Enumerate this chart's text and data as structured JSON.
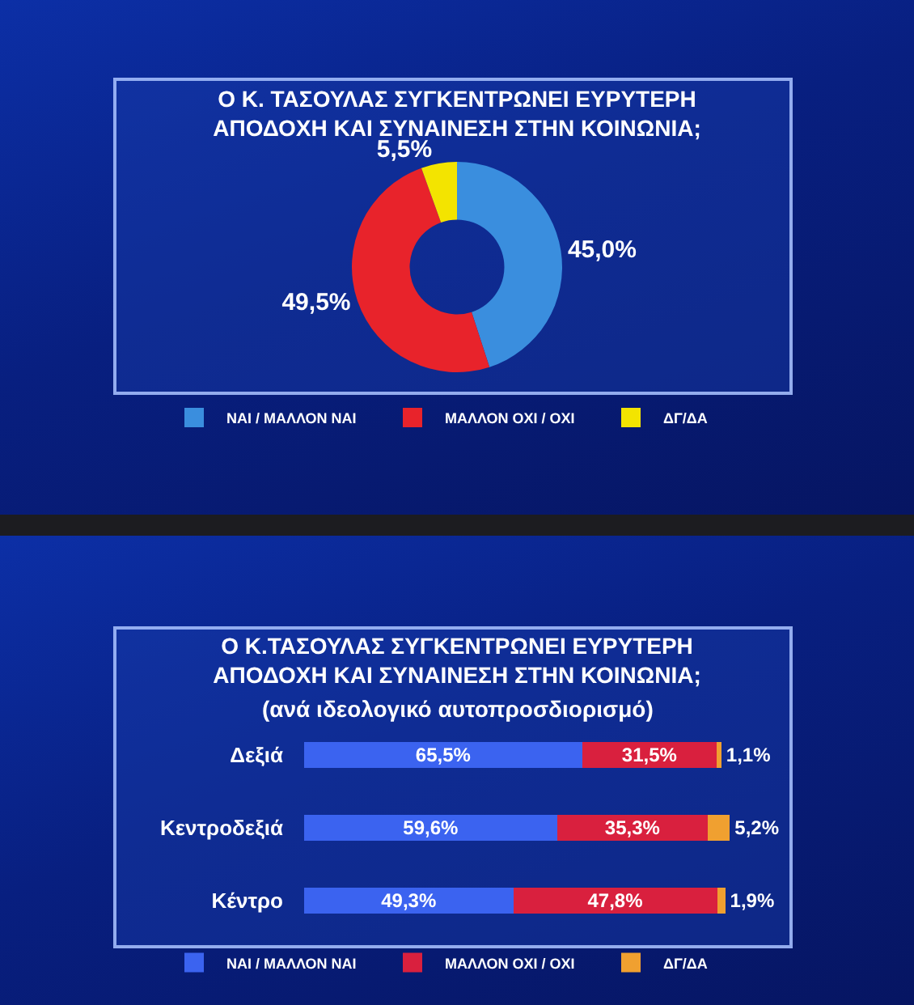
{
  "chart_data": [
    {
      "type": "donut",
      "title": "Ο Κ. ΤΑΣΟΥΛΑΣ ΣΥΓΚΕΝΤΡΩΝΕΙ ΕΥΡΥΤΕΡΗ ΑΠΟΔΟΧΗ ΚΑΙ ΣΥΝΑΙΝΕΣΗ ΣΤΗΝ ΚΟΙΝΩΝΙΑ;",
      "categories": [
        "ΝΑΙ / ΜΑΛΛΟΝ ΝΑΙ",
        "ΜΑΛΛΟΝ ΟΧΙ / ΟΧΙ",
        "ΔΓ/ΔΑ"
      ],
      "values": [
        45.0,
        49.5,
        5.5
      ],
      "colors": [
        "#3a8ede",
        "#e8232b",
        "#f3e400"
      ],
      "value_labels": [
        "45,0%",
        "49,5%",
        "5,5%"
      ],
      "legend": "bottom"
    },
    {
      "type": "bar",
      "orientation": "horizontal",
      "stacked": true,
      "title": "Ο Κ.ΤΑΣΟΥΛΑΣ ΣΥΓΚΕΝΤΡΩΝΕΙ ΕΥΡΥΤΕΡΗ ΑΠΟΔΟΧΗ ΚΑΙ ΣΥΝΑΙΝΕΣΗ ΣΤΗΝ ΚΟΙΝΩΝΙΑ;",
      "subtitle": "(ανά ιδεολογικό αυτοπροσδιορισμό)",
      "categories": [
        "Δεξιά",
        "Κεντροδεξιά",
        "Κέντρο"
      ],
      "series": [
        {
          "name": "ΝΑΙ / ΜΑΛΛΟΝ ΝΑΙ",
          "color": "#3b63f0",
          "values": [
            65.5,
            59.6,
            49.3
          ],
          "value_labels": [
            "65,5%",
            "59,6%",
            "49,3%"
          ]
        },
        {
          "name": "ΜΑΛΛΟΝ ΟΧΙ / ΟΧΙ",
          "color": "#d9203e",
          "values": [
            31.5,
            35.3,
            47.8
          ],
          "value_labels": [
            "31,5%",
            "35,3%",
            "47,8%"
          ]
        },
        {
          "name": "ΔΓ/ΔΑ",
          "color": "#f0a030",
          "values": [
            1.1,
            5.2,
            1.9
          ],
          "value_labels": [
            "1,1%",
            "5,2%",
            "1,9%"
          ]
        }
      ],
      "legend": "bottom",
      "tick_labels": "y"
    }
  ]
}
